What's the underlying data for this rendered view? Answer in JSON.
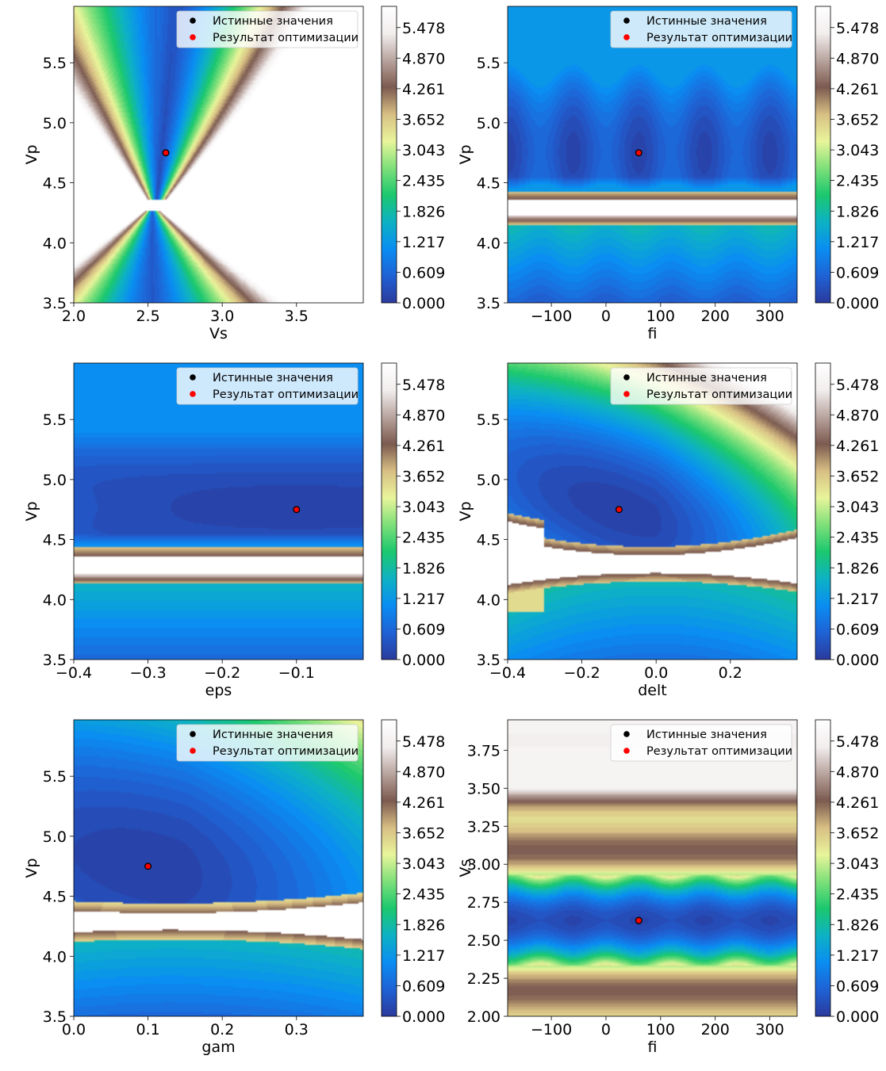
{
  "colorbar": {
    "ticks": [
      "0.000",
      "0.609",
      "1.217",
      "1.826",
      "2.435",
      "3.043",
      "3.652",
      "4.261",
      "4.870",
      "5.478"
    ],
    "vmin": 0,
    "vmax": 5.9,
    "colormap_stops": [
      "#2b3b9e",
      "#1f63d6",
      "#0a8ef2",
      "#0db2c4",
      "#1cc86e",
      "#7fe07a",
      "#e9f59b",
      "#d8bf84",
      "#7c5b50",
      "#b9a49e",
      "#f2eeee",
      "#ffffff"
    ]
  },
  "legend": {
    "true_label": "Истинные значения",
    "opt_label": "Результат оптимизации",
    "true_color": "#000000",
    "opt_color": "#ff0000"
  },
  "chart_data": [
    {
      "type": "heatmap",
      "xlabel": "Vs",
      "ylabel": "Vp",
      "xlim": [
        2.0,
        3.95
      ],
      "ylim": [
        3.5,
        5.97
      ],
      "xticks": [
        "2.0",
        "2.5",
        "3.0",
        "3.5"
      ],
      "xtick_values": [
        2.0,
        2.5,
        3.0,
        3.5
      ],
      "yticks": [
        "3.5",
        "4.0",
        "4.5",
        "5.0",
        "5.5"
      ],
      "ytick_values": [
        3.5,
        4.0,
        4.5,
        5.0,
        5.5
      ],
      "true_point": [
        2.62,
        4.75
      ],
      "opt_point": [
        2.62,
        4.75
      ],
      "legend_position": "upper right"
    },
    {
      "type": "heatmap",
      "xlabel": "fi",
      "ylabel": "Vp",
      "xlim": [
        -180,
        350
      ],
      "ylim": [
        3.5,
        5.97
      ],
      "xticks": [
        "−100",
        "0",
        "100",
        "200",
        "300"
      ],
      "xtick_values": [
        -100,
        0,
        100,
        200,
        300
      ],
      "yticks": [
        "3.5",
        "4.0",
        "4.5",
        "5.0",
        "5.5"
      ],
      "ytick_values": [
        3.5,
        4.0,
        4.5,
        5.0,
        5.5
      ],
      "true_point": [
        60,
        4.75
      ],
      "opt_point": [
        60,
        4.75
      ],
      "legend_position": "upper right"
    },
    {
      "type": "heatmap",
      "xlabel": "eps",
      "ylabel": "Vp",
      "xlim": [
        -0.4,
        -0.01
      ],
      "ylim": [
        3.5,
        5.97
      ],
      "xticks": [
        "−0.4",
        "−0.3",
        "−0.2",
        "−0.1"
      ],
      "xtick_values": [
        -0.4,
        -0.3,
        -0.2,
        -0.1
      ],
      "yticks": [
        "3.5",
        "4.0",
        "4.5",
        "5.0",
        "5.5"
      ],
      "ytick_values": [
        3.5,
        4.0,
        4.5,
        5.0,
        5.5
      ],
      "true_point": [
        -0.1,
        4.75
      ],
      "opt_point": [
        -0.1,
        4.75
      ],
      "legend_position": "upper right"
    },
    {
      "type": "heatmap",
      "xlabel": "delt",
      "ylabel": "Vp",
      "xlim": [
        -0.4,
        0.38
      ],
      "ylim": [
        3.5,
        5.97
      ],
      "xticks": [
        "−0.4",
        "−0.2",
        "0.0",
        "0.2"
      ],
      "xtick_values": [
        -0.4,
        -0.2,
        0.0,
        0.2
      ],
      "yticks": [
        "3.5",
        "4.0",
        "4.5",
        "5.0",
        "5.5"
      ],
      "ytick_values": [
        3.5,
        4.0,
        4.5,
        5.0,
        5.5
      ],
      "true_point": [
        -0.1,
        4.75
      ],
      "opt_point": [
        -0.1,
        4.75
      ],
      "legend_position": "upper right"
    },
    {
      "type": "heatmap",
      "xlabel": "gam",
      "ylabel": "Vp",
      "xlim": [
        0.0,
        0.39
      ],
      "ylim": [
        3.5,
        5.97
      ],
      "xticks": [
        "0.0",
        "0.1",
        "0.2",
        "0.3"
      ],
      "xtick_values": [
        0.0,
        0.1,
        0.2,
        0.3
      ],
      "yticks": [
        "3.5",
        "4.0",
        "4.5",
        "5.0",
        "5.5"
      ],
      "ytick_values": [
        3.5,
        4.0,
        4.5,
        5.0,
        5.5
      ],
      "true_point": [
        0.1,
        4.75
      ],
      "opt_point": [
        0.1,
        4.75
      ],
      "legend_position": "upper right"
    },
    {
      "type": "heatmap",
      "xlabel": "fi",
      "ylabel": "Vs",
      "xlim": [
        -180,
        350
      ],
      "ylim": [
        2.0,
        3.95
      ],
      "xticks": [
        "−100",
        "0",
        "100",
        "200",
        "300"
      ],
      "xtick_values": [
        -100,
        0,
        100,
        200,
        300
      ],
      "yticks": [
        "2.00",
        "2.25",
        "2.50",
        "2.75",
        "3.00",
        "3.25",
        "3.50",
        "3.75"
      ],
      "ytick_values": [
        2.0,
        2.25,
        2.5,
        2.75,
        3.0,
        3.25,
        3.5,
        3.75
      ],
      "true_point": [
        60,
        2.63
      ],
      "opt_point": [
        60,
        2.63
      ],
      "legend_position": "upper right"
    }
  ]
}
